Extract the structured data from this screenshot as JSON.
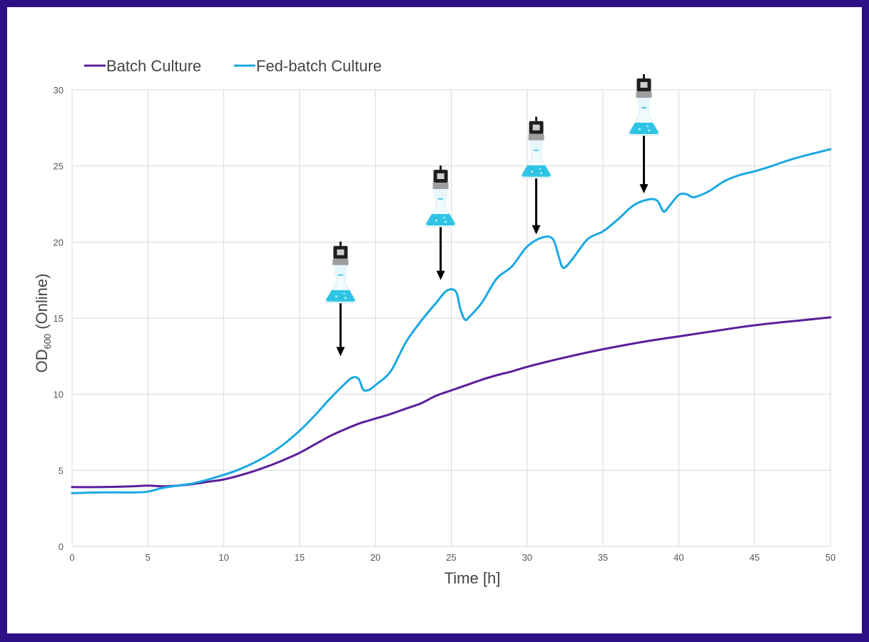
{
  "colors": {
    "frame": "#2e0f86",
    "batch": "#5b1f9b",
    "fedbatch": "#19a8e3",
    "grid": "#d9d9d9",
    "arrow": "#000000",
    "flask_liquid": "#2fc4e6"
  },
  "chart_data": {
    "type": "line",
    "title": "",
    "xlabel": "Time [h]",
    "ylabel_main": "OD",
    "ylabel_sub": "600",
    "ylabel_suffix": " (Online)",
    "xlim": [
      0,
      50
    ],
    "ylim": [
      0,
      30
    ],
    "xticks": [
      "0",
      "5",
      "10",
      "15",
      "20",
      "25",
      "30",
      "35",
      "40",
      "45",
      "50"
    ],
    "yticks": [
      "0",
      "5",
      "10",
      "15",
      "20",
      "25",
      "30"
    ],
    "grid": true,
    "legend_position": "top-left",
    "series": [
      {
        "name": "Batch Culture",
        "color": "#5b1f9b",
        "points": [
          [
            0,
            3.9
          ],
          [
            2,
            3.9
          ],
          [
            4,
            3.95
          ],
          [
            5,
            4.0
          ],
          [
            6,
            3.95
          ],
          [
            7,
            4.0
          ],
          [
            8,
            4.1
          ],
          [
            9,
            4.25
          ],
          [
            10,
            4.4
          ],
          [
            11,
            4.65
          ],
          [
            12,
            4.95
          ],
          [
            13,
            5.3
          ],
          [
            14,
            5.7
          ],
          [
            15,
            6.15
          ],
          [
            16,
            6.7
          ],
          [
            17,
            7.25
          ],
          [
            18,
            7.7
          ],
          [
            19,
            8.1
          ],
          [
            20,
            8.4
          ],
          [
            21,
            8.7
          ],
          [
            22,
            9.05
          ],
          [
            23,
            9.4
          ],
          [
            24,
            9.9
          ],
          [
            25,
            10.25
          ],
          [
            26,
            10.6
          ],
          [
            27,
            10.95
          ],
          [
            28,
            11.25
          ],
          [
            29,
            11.5
          ],
          [
            30,
            11.8
          ],
          [
            32,
            12.3
          ],
          [
            34,
            12.75
          ],
          [
            36,
            13.15
          ],
          [
            38,
            13.5
          ],
          [
            40,
            13.8
          ],
          [
            42,
            14.1
          ],
          [
            44,
            14.4
          ],
          [
            46,
            14.65
          ],
          [
            48,
            14.85
          ],
          [
            50,
            15.05
          ]
        ]
      },
      {
        "name": "Fed-batch Culture",
        "color": "#19a8e3",
        "points": [
          [
            0,
            3.5
          ],
          [
            2,
            3.55
          ],
          [
            4,
            3.55
          ],
          [
            5,
            3.6
          ],
          [
            6,
            3.85
          ],
          [
            7,
            4.0
          ],
          [
            8,
            4.15
          ],
          [
            9,
            4.4
          ],
          [
            10,
            4.7
          ],
          [
            11,
            5.05
          ],
          [
            12,
            5.5
          ],
          [
            13,
            6.05
          ],
          [
            14,
            6.75
          ],
          [
            15,
            7.6
          ],
          [
            16,
            8.6
          ],
          [
            17,
            9.7
          ],
          [
            18,
            10.7
          ],
          [
            18.5,
            11.1
          ],
          [
            18.9,
            11.0
          ],
          [
            19.2,
            10.3
          ],
          [
            19.6,
            10.3
          ],
          [
            20,
            10.6
          ],
          [
            21,
            11.5
          ],
          [
            22,
            13.4
          ],
          [
            23,
            14.8
          ],
          [
            24,
            16.0
          ],
          [
            24.7,
            16.8
          ],
          [
            25.3,
            16.75
          ],
          [
            25.6,
            15.6
          ],
          [
            25.9,
            14.9
          ],
          [
            26.2,
            15.1
          ],
          [
            27,
            16.0
          ],
          [
            28,
            17.6
          ],
          [
            29,
            18.4
          ],
          [
            30,
            19.7
          ],
          [
            31,
            20.3
          ],
          [
            31.7,
            20.2
          ],
          [
            32.1,
            19.0
          ],
          [
            32.4,
            18.3
          ],
          [
            33,
            18.9
          ],
          [
            34,
            20.2
          ],
          [
            35,
            20.7
          ],
          [
            36,
            21.5
          ],
          [
            37,
            22.4
          ],
          [
            38,
            22.8
          ],
          [
            38.6,
            22.7
          ],
          [
            39,
            22.0
          ],
          [
            39.4,
            22.4
          ],
          [
            40,
            23.1
          ],
          [
            40.5,
            23.15
          ],
          [
            41,
            22.95
          ],
          [
            42,
            23.35
          ],
          [
            43,
            24.0
          ],
          [
            44,
            24.4
          ],
          [
            45,
            24.65
          ],
          [
            46,
            24.95
          ],
          [
            47,
            25.3
          ],
          [
            48,
            25.6
          ],
          [
            49,
            25.85
          ],
          [
            50,
            26.1
          ]
        ]
      }
    ],
    "annotations": [
      {
        "type": "feed-arrow",
        "x": 17.7,
        "y_start": 16.0,
        "y_end": 12.5
      },
      {
        "type": "feed-arrow",
        "x": 24.3,
        "y_start": 21.0,
        "y_end": 17.5
      },
      {
        "type": "feed-arrow",
        "x": 30.6,
        "y_start": 24.3,
        "y_end": 20.5
      },
      {
        "type": "feed-arrow",
        "x": 37.7,
        "y_start": 27.0,
        "y_end": 23.2
      }
    ],
    "flask_icons": [
      {
        "x": 17.7,
        "y": 17.5
      },
      {
        "x": 24.3,
        "y": 22.5
      },
      {
        "x": 30.6,
        "y": 25.7
      },
      {
        "x": 37.7,
        "y": 28.5
      }
    ]
  }
}
